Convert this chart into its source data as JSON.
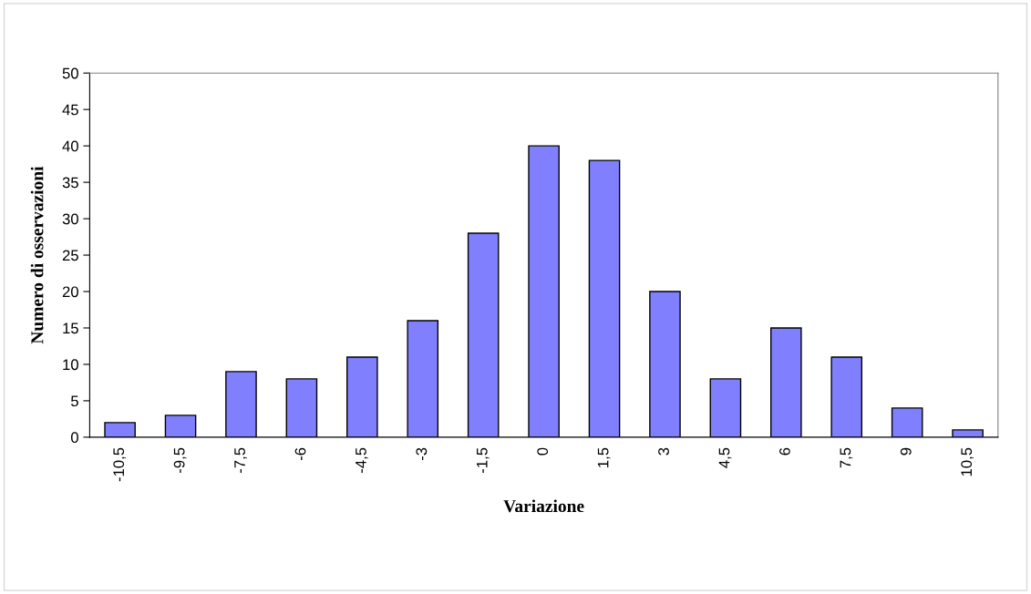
{
  "chart_data": {
    "type": "bar",
    "xlabel": "Variazione",
    "ylabel": "Numero di osservazioni",
    "categories": [
      "-10,5",
      "-9,5",
      "-7,5",
      "-6",
      "-4,5",
      "-3",
      "-1,5",
      "0",
      "1,5",
      "3",
      "4,5",
      "6",
      "7,5",
      "9",
      "10,5"
    ],
    "values": [
      2,
      3,
      9,
      8,
      11,
      16,
      28,
      40,
      38,
      20,
      8,
      15,
      11,
      4,
      1
    ],
    "color": "#8080ff",
    "ylim": [
      0,
      50
    ],
    "yticks": [
      0,
      5,
      10,
      15,
      20,
      25,
      30,
      35,
      40,
      45,
      50
    ],
    "grid": false
  }
}
